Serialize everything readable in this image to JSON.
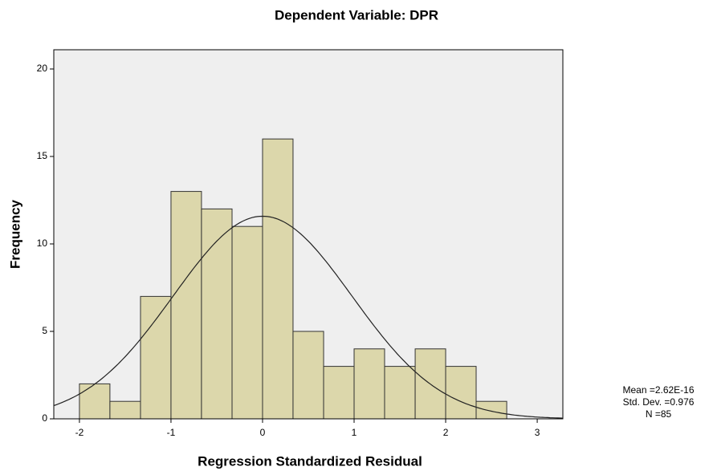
{
  "chart_data": {
    "type": "histogram",
    "title": "Dependent Variable: DPR",
    "xlabel": "Regression Standardized Residual",
    "ylabel": "Frequency",
    "bins": [
      -2,
      -1.667,
      -1.333,
      -1,
      -0.667,
      -0.333,
      0,
      0.333,
      0.667,
      1,
      1.333,
      1.667,
      2,
      2.333,
      2.667
    ],
    "values": [
      2,
      1,
      7,
      13,
      12,
      11,
      16,
      5,
      3,
      4,
      3,
      4,
      3,
      1
    ],
    "color": "#dcd7ab",
    "edge_color": "#333333",
    "background": "#efefef",
    "xlim": [
      -2.28,
      3.28
    ],
    "ylim": [
      0,
      21.1
    ],
    "xticks": [
      -2,
      -1,
      0,
      1,
      2,
      3
    ],
    "yticks": [
      0,
      5,
      10,
      15,
      20
    ],
    "stats": [
      {
        "value": 2.62e-16,
        "label": "Mean =2.62E-16"
      },
      {
        "value": 0.976,
        "label": "Std. Dev. =0.976"
      },
      {
        "value": 85,
        "label": "N =85"
      }
    ]
  }
}
